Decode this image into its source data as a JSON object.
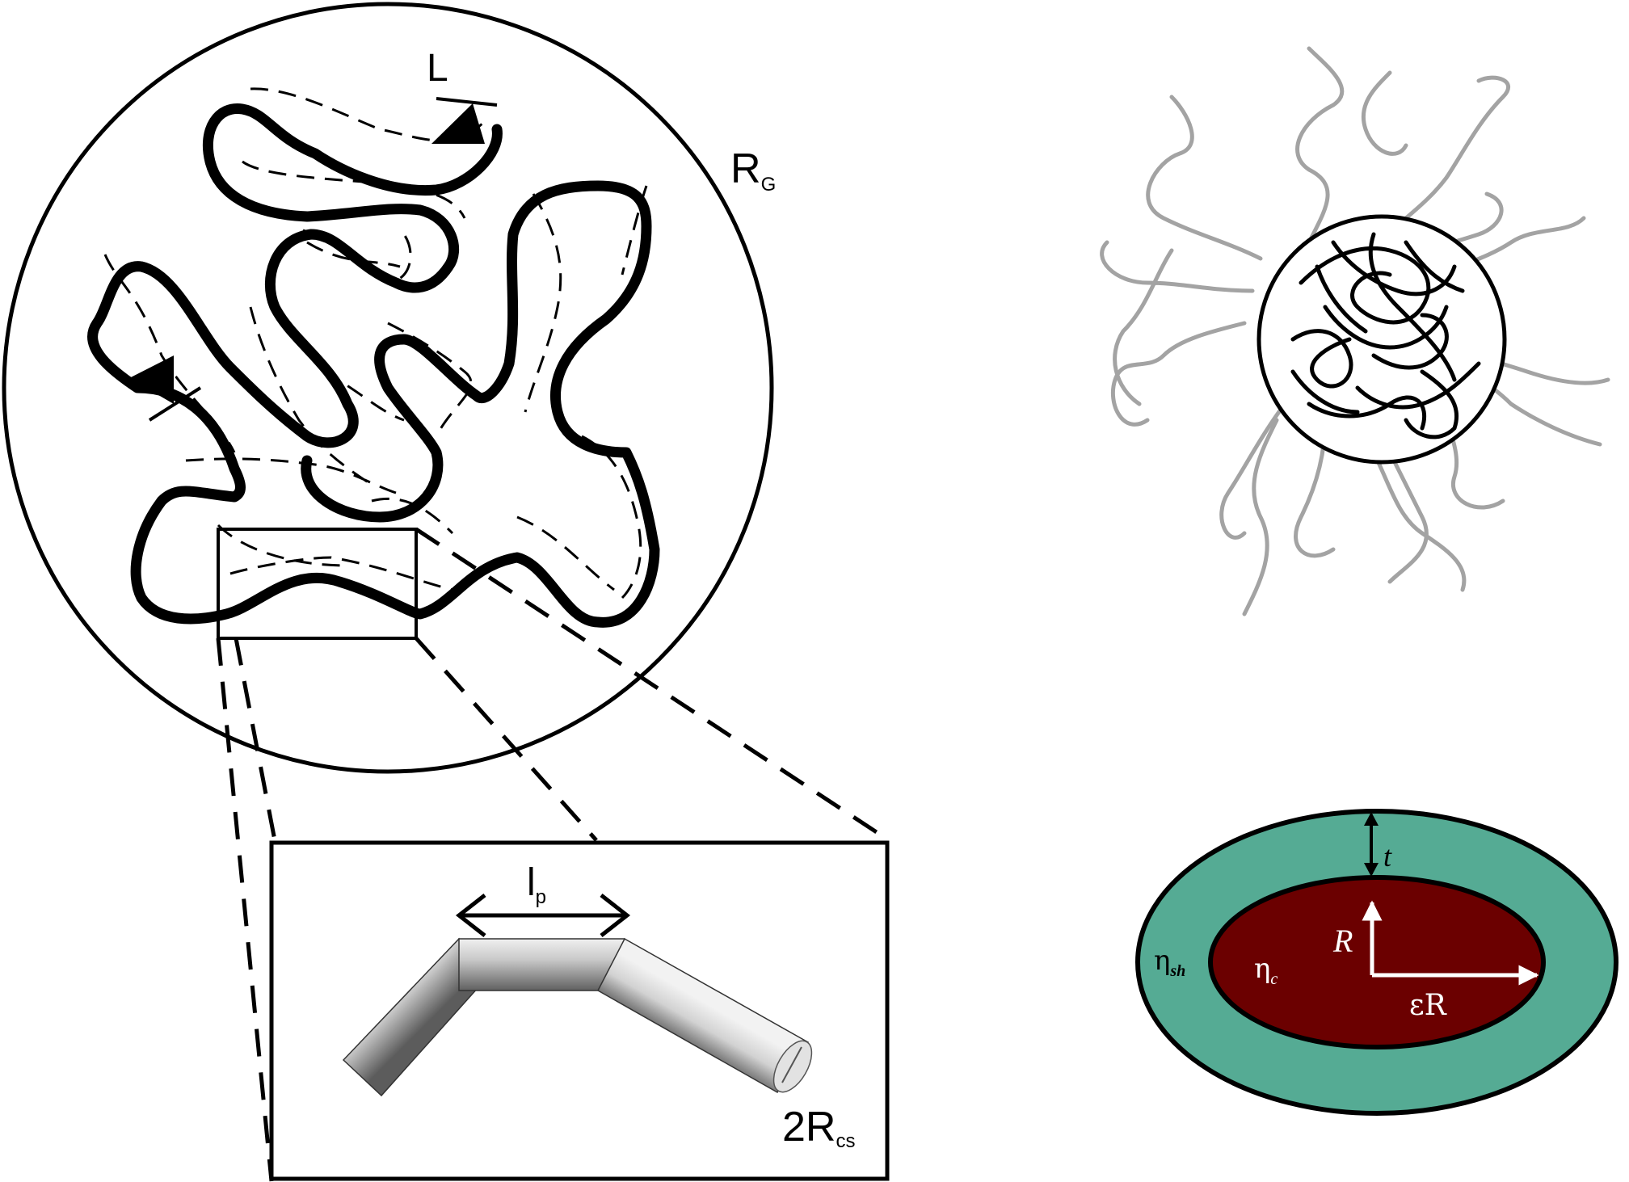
{
  "colors": {
    "ink": "#000000",
    "gray_chain": "#a3a3a3",
    "shell": "#55ab94",
    "core": "#6b0000",
    "arrow_white": "#ffffff"
  },
  "left_panel": {
    "contour_label": "L",
    "radius_label_main": "R",
    "radius_label_sub": "G",
    "inset": {
      "persistence_main": "l",
      "persistence_sub": "p",
      "cross_section_prefix": "2R",
      "cross_section_sub": "cs"
    }
  },
  "right_panel": {
    "shell_thickness_label": "t",
    "core_radius_label": "R",
    "axial_label": "εR",
    "shell_sld_main": "η",
    "shell_sld_sub": "sh",
    "core_sld_main": "η",
    "core_sld_sub": "c"
  }
}
